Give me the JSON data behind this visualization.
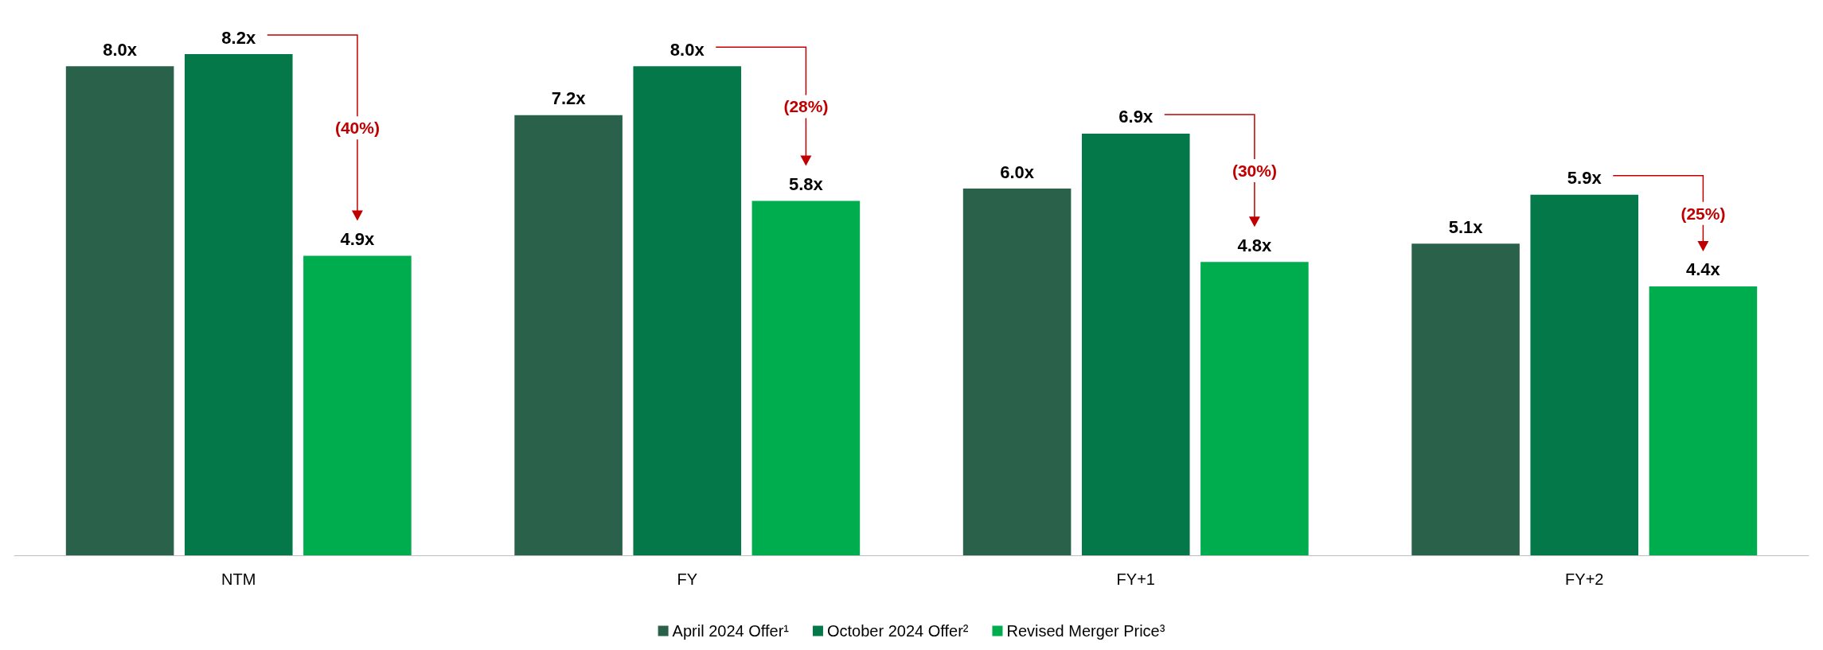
{
  "chart_data": {
    "type": "bar",
    "categories": [
      "NTM",
      "FY",
      "FY+1",
      "FY+2"
    ],
    "series": [
      {
        "name": "April 2024 Offer¹",
        "color": "#2a614b",
        "values": [
          8.0,
          7.2,
          6.0,
          5.1
        ],
        "value_labels": [
          "8.0x",
          "7.2x",
          "6.0x",
          "5.1x"
        ]
      },
      {
        "name": "October 2024 Offer²",
        "color": "#05784a",
        "values": [
          8.2,
          8.0,
          6.9,
          5.9
        ],
        "value_labels": [
          "8.2x",
          "8.0x",
          "6.9x",
          "5.9x"
        ]
      },
      {
        "name": "Revised Merger Price³",
        "color": "#00ad4e",
        "values": [
          4.9,
          5.8,
          4.8,
          4.4
        ],
        "value_labels": [
          "4.9x",
          "5.8x",
          "4.8x",
          "4.4x"
        ]
      }
    ],
    "annotations": [
      "(40%)",
      "(28%)",
      "(30%)",
      "(25%)"
    ],
    "legend": "bottom",
    "grid": false
  }
}
